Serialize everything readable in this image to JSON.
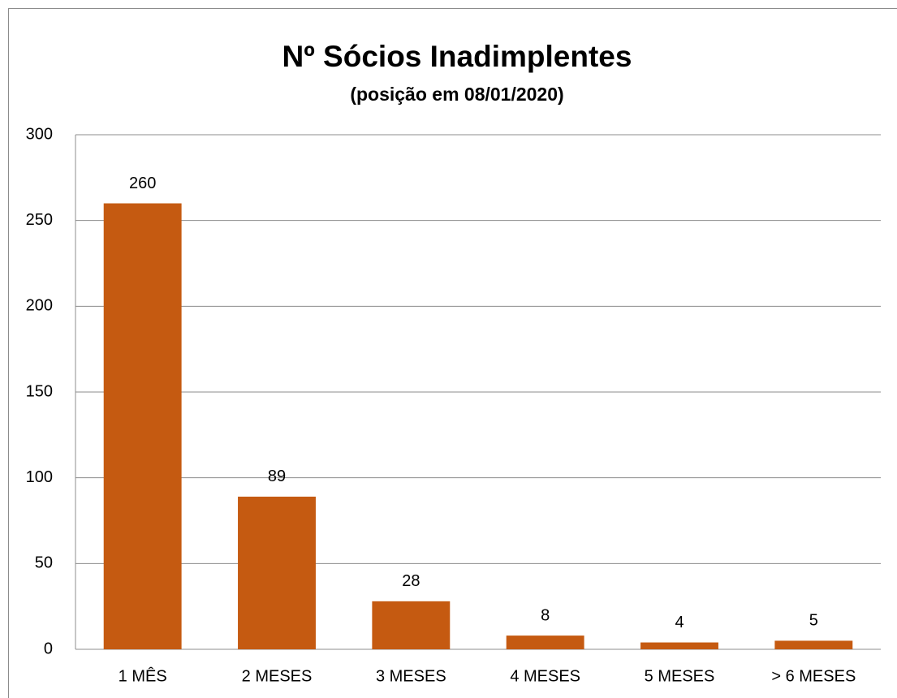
{
  "chart_data": {
    "type": "bar",
    "title": "Nº Sócios Inadimplentes",
    "subtitle": "(posição em 08/01/2020)",
    "categories": [
      "1 MÊS",
      "2 MESES",
      "3 MESES",
      "4 MESES",
      "5 MESES",
      "> 6 MESES"
    ],
    "values": [
      260,
      89,
      28,
      8,
      4,
      5
    ],
    "color": "#c55a11",
    "ylim": [
      0,
      300
    ],
    "yticks": [
      0,
      50,
      100,
      150,
      200,
      250,
      300
    ],
    "grid": true
  }
}
